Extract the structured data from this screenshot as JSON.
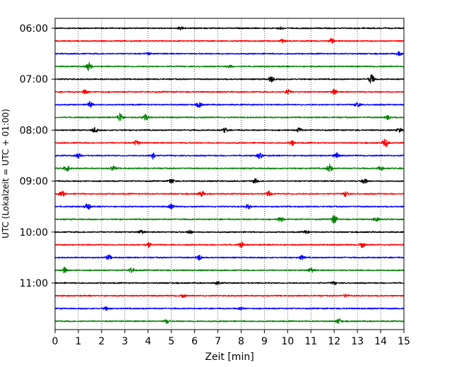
{
  "chart_data": {
    "type": "line",
    "title": "",
    "xlabel": "Zeit  [min]",
    "ylabel": "UTC (Lokalzeit = UTC + 01:00)",
    "xlim": [
      0,
      15
    ],
    "x_ticks": [
      "0",
      "1",
      "2",
      "3",
      "4",
      "5",
      "6",
      "7",
      "8",
      "9",
      "10",
      "11",
      "12",
      "13",
      "14",
      "15"
    ],
    "y_ticks": [
      {
        "label": "06:00",
        "row": 0
      },
      {
        "label": "07:00",
        "row": 4
      },
      {
        "label": "08:00",
        "row": 8
      },
      {
        "label": "09:00",
        "row": 12
      },
      {
        "label": "10:00",
        "row": 16
      },
      {
        "label": "11:00",
        "row": 20
      }
    ],
    "trace_interval_min": 15,
    "colors": [
      "#000000",
      "#ff0000",
      "#0000ff",
      "#008000"
    ],
    "grid": "vertical dotted lines at each minute",
    "series": [
      {
        "start": "06:00",
        "color": "#000000",
        "events": [
          {
            "x": 5.4,
            "amp": 0.3
          },
          {
            "x": 9.7,
            "amp": 0.25
          }
        ]
      },
      {
        "start": "06:15",
        "color": "#ff0000",
        "events": [
          {
            "x": 9.8,
            "amp": 0.35
          },
          {
            "x": 11.9,
            "amp": 0.5
          }
        ]
      },
      {
        "start": "06:30",
        "color": "#0000ff",
        "events": [
          {
            "x": 4.0,
            "amp": 0.25
          },
          {
            "x": 14.8,
            "amp": 0.35
          }
        ]
      },
      {
        "start": "06:45",
        "color": "#008000",
        "events": [
          {
            "x": 1.45,
            "amp": 0.9
          },
          {
            "x": 7.5,
            "amp": 0.25
          }
        ]
      },
      {
        "start": "07:00",
        "color": "#000000",
        "events": [
          {
            "x": 9.3,
            "amp": 0.6
          },
          {
            "x": 13.6,
            "amp": 1.0
          }
        ]
      },
      {
        "start": "07:15",
        "color": "#ff0000",
        "events": [
          {
            "x": 1.3,
            "amp": 0.45
          },
          {
            "x": 10.0,
            "amp": 0.5
          },
          {
            "x": 12.0,
            "amp": 0.55
          }
        ]
      },
      {
        "start": "07:30",
        "color": "#0000ff",
        "events": [
          {
            "x": 1.5,
            "amp": 0.6
          },
          {
            "x": 6.2,
            "amp": 0.55
          },
          {
            "x": 13.0,
            "amp": 0.5
          }
        ]
      },
      {
        "start": "07:45",
        "color": "#008000",
        "events": [
          {
            "x": 2.8,
            "amp": 1.0
          },
          {
            "x": 3.9,
            "amp": 0.65
          },
          {
            "x": 14.3,
            "amp": 0.45
          }
        ]
      },
      {
        "start": "08:00",
        "color": "#000000",
        "events": [
          {
            "x": 1.7,
            "amp": 0.5
          },
          {
            "x": 7.3,
            "amp": 0.45
          },
          {
            "x": 10.5,
            "amp": 0.45
          },
          {
            "x": 14.8,
            "amp": 0.4
          }
        ]
      },
      {
        "start": "08:15",
        "color": "#ff0000",
        "events": [
          {
            "x": 3.5,
            "amp": 0.55
          },
          {
            "x": 10.2,
            "amp": 0.5
          },
          {
            "x": 14.2,
            "amp": 0.9
          }
        ]
      },
      {
        "start": "08:30",
        "color": "#0000ff",
        "events": [
          {
            "x": 1.0,
            "amp": 0.55
          },
          {
            "x": 4.2,
            "amp": 0.75
          },
          {
            "x": 8.8,
            "amp": 0.55
          },
          {
            "x": 12.1,
            "amp": 0.6
          }
        ]
      },
      {
        "start": "08:45",
        "color": "#008000",
        "events": [
          {
            "x": 0.5,
            "amp": 0.55
          },
          {
            "x": 2.5,
            "amp": 0.5
          },
          {
            "x": 11.8,
            "amp": 0.8
          },
          {
            "x": 14.0,
            "amp": 0.5
          }
        ]
      },
      {
        "start": "09:00",
        "color": "#000000",
        "events": [
          {
            "x": 5.0,
            "amp": 0.5
          },
          {
            "x": 8.6,
            "amp": 0.45
          },
          {
            "x": 13.3,
            "amp": 0.65
          }
        ]
      },
      {
        "start": "09:15",
        "color": "#ff0000",
        "events": [
          {
            "x": 0.3,
            "amp": 0.6
          },
          {
            "x": 6.3,
            "amp": 0.55
          },
          {
            "x": 9.2,
            "amp": 0.5
          },
          {
            "x": 12.5,
            "amp": 0.5
          }
        ]
      },
      {
        "start": "09:30",
        "color": "#0000ff",
        "events": [
          {
            "x": 1.4,
            "amp": 0.75
          },
          {
            "x": 5.0,
            "amp": 0.55
          },
          {
            "x": 8.3,
            "amp": 0.45
          }
        ]
      },
      {
        "start": "09:45",
        "color": "#008000",
        "events": [
          {
            "x": 9.7,
            "amp": 0.55
          },
          {
            "x": 12.0,
            "amp": 0.9
          },
          {
            "x": 13.8,
            "amp": 0.45
          }
        ]
      },
      {
        "start": "10:00",
        "color": "#000000",
        "events": [
          {
            "x": 3.7,
            "amp": 0.4
          },
          {
            "x": 5.8,
            "amp": 0.35
          },
          {
            "x": 10.8,
            "amp": 0.35
          }
        ]
      },
      {
        "start": "10:15",
        "color": "#ff0000",
        "events": [
          {
            "x": 4.0,
            "amp": 0.55
          },
          {
            "x": 8.0,
            "amp": 0.5
          },
          {
            "x": 13.2,
            "amp": 0.55
          }
        ]
      },
      {
        "start": "10:30",
        "color": "#0000ff",
        "events": [
          {
            "x": 2.3,
            "amp": 0.5
          },
          {
            "x": 6.2,
            "amp": 0.55
          },
          {
            "x": 10.6,
            "amp": 0.45
          }
        ]
      },
      {
        "start": "10:45",
        "color": "#008000",
        "events": [
          {
            "x": 0.4,
            "amp": 0.6
          },
          {
            "x": 3.3,
            "amp": 0.55
          },
          {
            "x": 11.0,
            "amp": 0.5
          }
        ]
      },
      {
        "start": "11:00",
        "color": "#000000",
        "events": [
          {
            "x": 7.0,
            "amp": 0.3
          },
          {
            "x": 12.0,
            "amp": 0.3
          }
        ]
      },
      {
        "start": "11:15",
        "color": "#ff0000",
        "events": [
          {
            "x": 5.5,
            "amp": 0.3
          },
          {
            "x": 12.5,
            "amp": 0.3
          }
        ]
      },
      {
        "start": "11:30",
        "color": "#0000ff",
        "events": [
          {
            "x": 2.2,
            "amp": 0.35
          },
          {
            "x": 8.0,
            "amp": 0.3
          }
        ]
      },
      {
        "start": "11:45",
        "color": "#008000",
        "events": [
          {
            "x": 4.8,
            "amp": 0.4
          },
          {
            "x": 12.2,
            "amp": 0.5
          }
        ]
      }
    ]
  }
}
